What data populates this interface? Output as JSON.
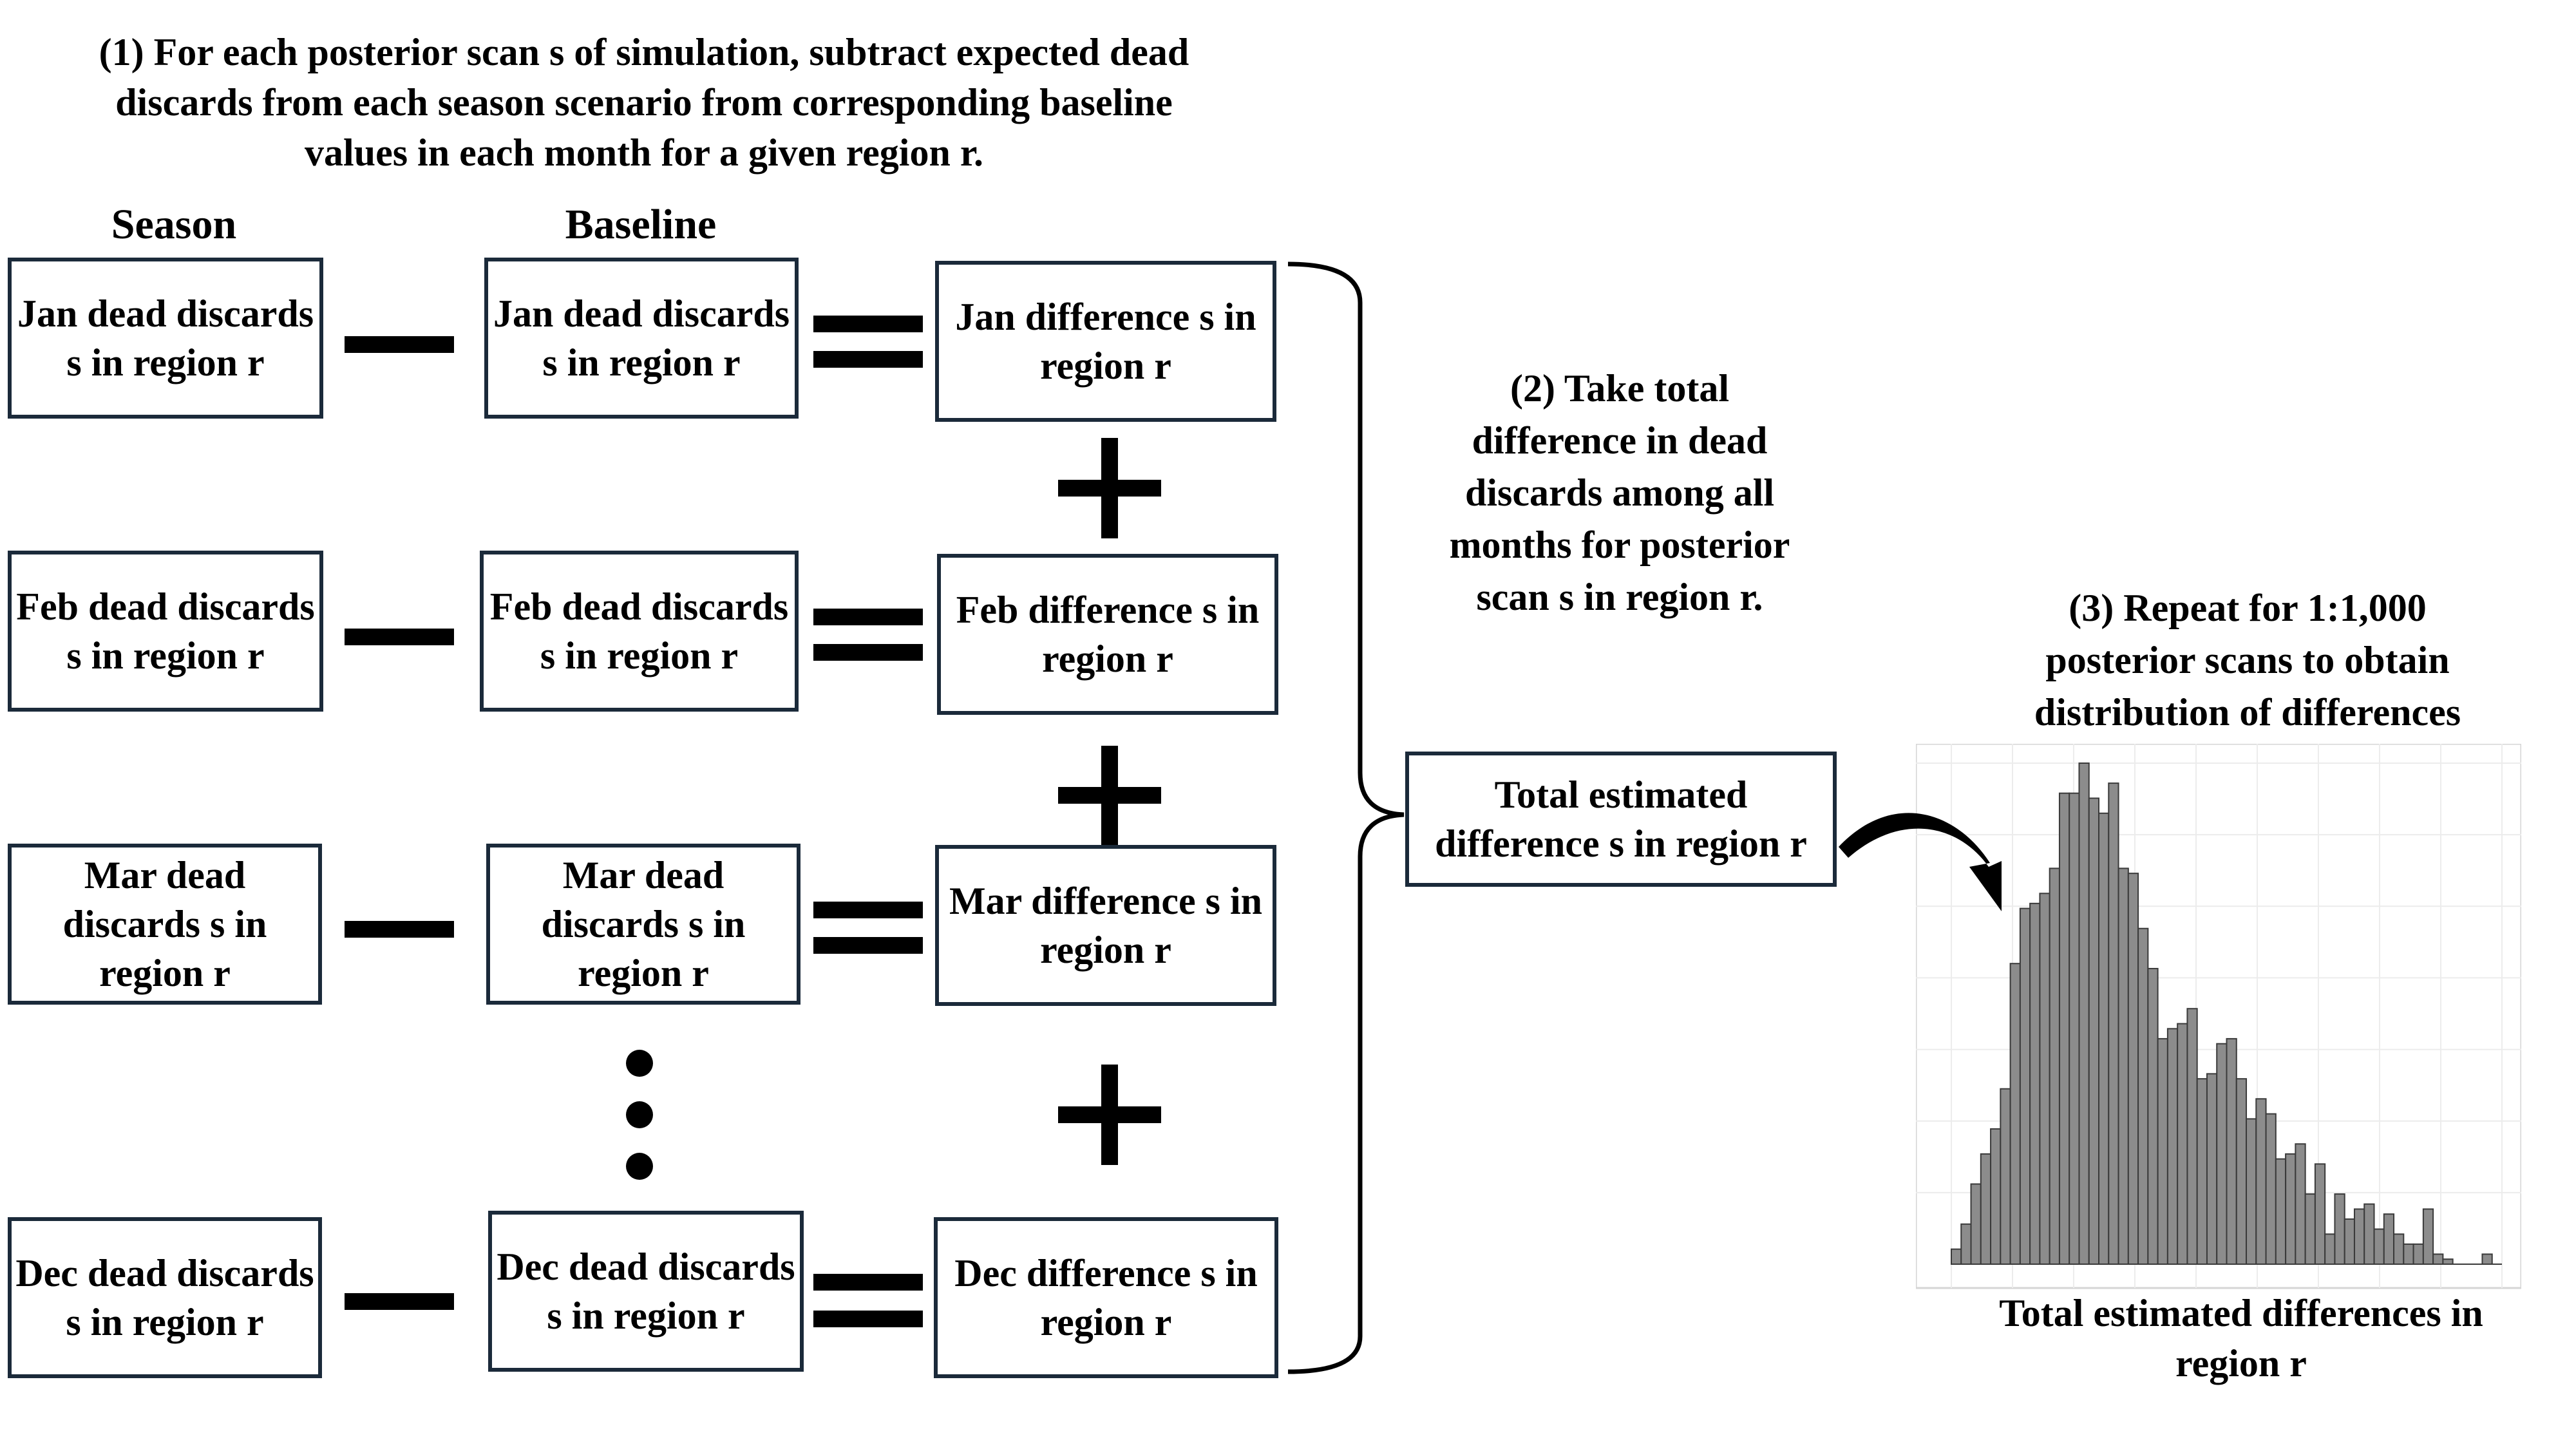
{
  "step1": {
    "text": "(1) For each posterior scan s of simulation, subtract expected dead discards from each season scenario from corresponding baseline values in each month for a given region r."
  },
  "headers": {
    "season": "Season",
    "baseline": "Baseline"
  },
  "rows": [
    {
      "season": "Jan dead discards s in region r",
      "baseline": "Jan dead discards s in region r",
      "difference": "Jan difference s in region r"
    },
    {
      "season": "Feb dead discards s in region r",
      "baseline": "Feb dead discards s in region r",
      "difference": "Feb difference s in region r"
    },
    {
      "season": "Mar dead discards s in region r",
      "baseline": "Mar dead discards s in region r",
      "difference": "Mar difference s in region r"
    },
    {
      "season": "Dec dead discards s in region r",
      "baseline": "Dec dead discards s in region r",
      "difference": "Dec difference s in region r"
    }
  ],
  "step2": {
    "text": "(2) Take total difference in dead discards among all months for posterior scan s in region r."
  },
  "total": {
    "text": "Total estimated difference s in region r"
  },
  "step3": {
    "text": "(3) Repeat for 1:1,000 posterior scans to obtain distribution of differences"
  },
  "colors": {
    "border": "#1b2a3a",
    "bar_fill": "#8c8c8c",
    "bar_stroke": "#3a3a3a",
    "grid": "#ececec"
  },
  "chart_data": {
    "type": "bar",
    "title": "",
    "xlabel": "Total estimated differences in region r",
    "ylabel": "",
    "grid": true,
    "values": [
      3,
      8,
      16,
      22,
      27,
      35,
      60,
      71,
      72,
      74,
      79,
      94,
      94,
      100,
      93,
      90,
      96,
      79,
      78,
      67,
      59,
      45,
      47,
      48,
      51,
      37,
      38,
      44,
      45,
      37,
      29,
      33,
      30,
      21,
      22,
      24,
      14,
      20,
      6,
      14,
      9,
      11,
      12,
      7,
      10,
      6,
      4,
      4,
      11,
      2,
      1,
      0,
      0,
      0,
      2,
      0
    ]
  }
}
